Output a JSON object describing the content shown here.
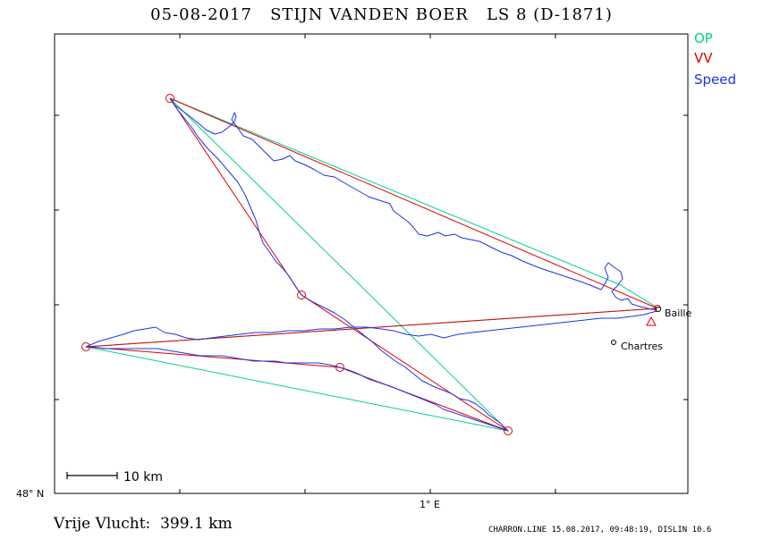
{
  "title": "05-08-2017   STIJN VANDEN BOER   LS 8 (D-1871)",
  "legend": {
    "op": "OP",
    "vv": "VV",
    "speed": "Speed"
  },
  "axes": {
    "lat_label": "48° N",
    "lon_label": "1° E"
  },
  "scale_bar": "10  km",
  "places": [
    {
      "name": "Baille"
    },
    {
      "name": "Chartres"
    }
  ],
  "footer": {
    "distance": "Vrije Vlucht:  399.1 km",
    "meta": "CHARRON.LINE 15.08.2017, 09:48:19, DISLIN 10.6"
  },
  "colors": {
    "op": "#00d090",
    "vv": "#e00000",
    "track": "#1b34e6",
    "frame": "#000000"
  }
}
